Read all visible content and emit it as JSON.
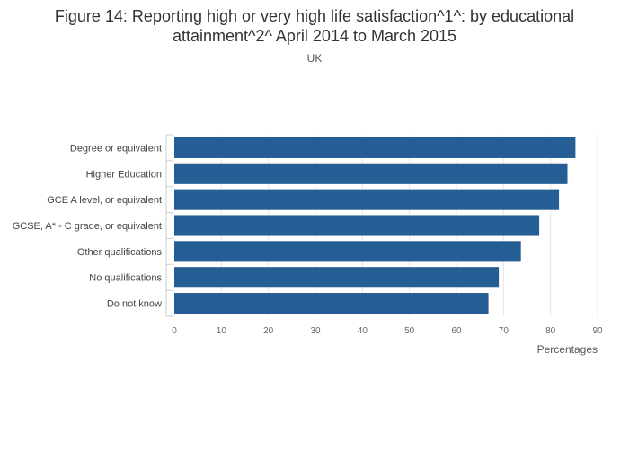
{
  "chart_data": {
    "type": "bar",
    "orientation": "horizontal",
    "title_line1": "Figure 14: Reporting high or very high life satisfaction^1^: by educational",
    "title_line2": "attainment^2^ April 2014 to March 2015",
    "subtitle": "UK",
    "xlabel": "Percentages",
    "ylabel": "",
    "categories": [
      "Degree or equivalent",
      "Higher Education",
      "GCE A level, or equivalent",
      "GCSE, A* - C grade, or equivalent",
      "Other qualifications",
      "No qualifications",
      "Do not know"
    ],
    "values": [
      85.3,
      83.6,
      81.8,
      77.6,
      73.7,
      69.0,
      66.8
    ],
    "xlim": [
      0,
      90
    ],
    "xticks": [
      0,
      10,
      20,
      30,
      40,
      50,
      60,
      70,
      80,
      90
    ],
    "bar_color": "#245e95",
    "grid": true
  }
}
